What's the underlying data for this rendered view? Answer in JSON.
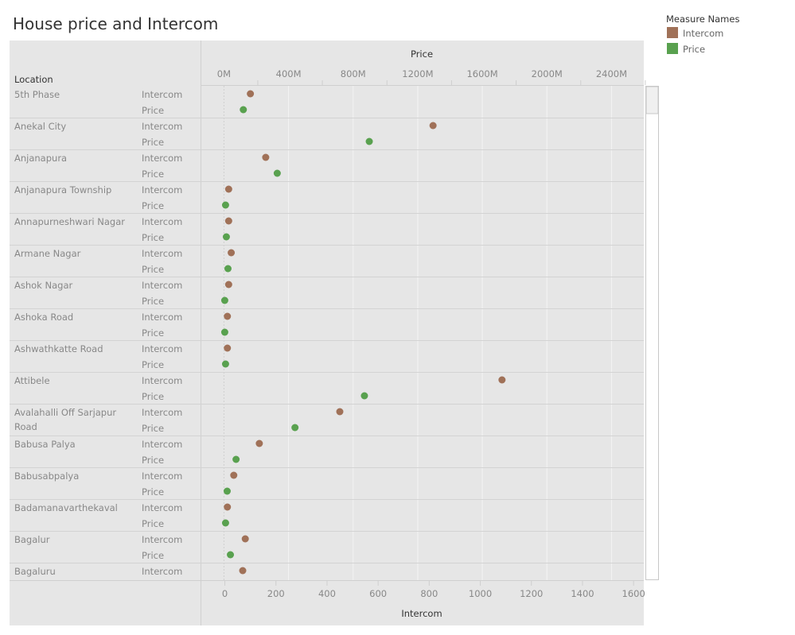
{
  "chart_data": {
    "type": "scatter",
    "title": "House price and Intercom",
    "row_header": "Location",
    "top_axis": {
      "label": "Price",
      "ticks": [
        "0M",
        "400M",
        "800M",
        "1200M",
        "1600M",
        "2000M",
        "2400M"
      ],
      "tick_values": [
        0,
        400,
        800,
        1200,
        1600,
        2000,
        2400
      ],
      "range": [
        -140,
        2600
      ]
    },
    "bottom_axis": {
      "label": "Intercom",
      "ticks": [
        "0",
        "200",
        "400",
        "600",
        "800",
        "1000",
        "1200",
        "1400",
        "1600"
      ],
      "tick_values": [
        0,
        200,
        400,
        600,
        800,
        1000,
        1200,
        1400,
        1600
      ],
      "range": [
        -92,
        1640
      ]
    },
    "legend": {
      "title": "Measure Names",
      "placement": "top-right",
      "items": [
        {
          "name": "Intercom",
          "color": "#a07158"
        },
        {
          "name": "Price",
          "color": "#59a14f"
        }
      ]
    },
    "rows": [
      {
        "location": "5th Phase",
        "intercom": 100,
        "price": 120
      },
      {
        "location": "Anekal City",
        "intercom": 815,
        "price": 900
      },
      {
        "location": "Anjanapura",
        "intercom": 160,
        "price": 330
      },
      {
        "location": "Anjanapura Township",
        "intercom": 15,
        "price": 10
      },
      {
        "location": "Annapurneshwari Nagar",
        "intercom": 15,
        "price": 15
      },
      {
        "location": "Armane Nagar",
        "intercom": 25,
        "price": 25
      },
      {
        "location": "Ashok Nagar",
        "intercom": 15,
        "price": 5
      },
      {
        "location": "Ashoka Road",
        "intercom": 10,
        "price": 5
      },
      {
        "location": "Ashwathkatte Road",
        "intercom": 10,
        "price": 10
      },
      {
        "location": "Attibele",
        "intercom": 1085,
        "price": 870
      },
      {
        "location": "Avalahalli Off Sarjapur Road",
        "intercom": 450,
        "price": 440
      },
      {
        "location": "Babusa Palya",
        "intercom": 135,
        "price": 75
      },
      {
        "location": "Babusabpalya",
        "intercom": 35,
        "price": 20
      },
      {
        "location": "Badamanavarthekaval",
        "intercom": 10,
        "price": 10
      },
      {
        "location": "Bagalur",
        "intercom": 80,
        "price": 40
      },
      {
        "location": "Bagaluru",
        "intercom": 70,
        "price": null
      }
    ],
    "measure_labels": [
      "Intercom",
      "Price"
    ],
    "grid": true
  }
}
